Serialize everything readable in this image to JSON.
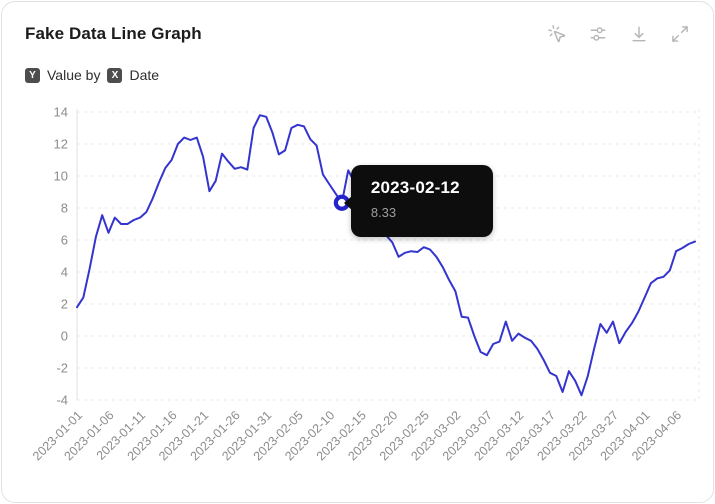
{
  "header": {
    "title": "Fake Data Line Graph",
    "toolbar_icons": [
      "mouse-pointer-click",
      "sliders",
      "download",
      "expand"
    ]
  },
  "subtitle": {
    "y_badge": "Y",
    "y_text": "Value by",
    "x_badge": "X",
    "x_text": "Date"
  },
  "tooltip": {
    "date": "2023-02-12",
    "value": "8.33"
  },
  "colors": {
    "line": "#3434cf",
    "marker_ring": "#2424cc",
    "tooltip_bg": "#0d0d0d",
    "axis_label": "#8c8c8c",
    "gridline": "#e8e8e8",
    "icon": "#b5b5b5",
    "badge_bg": "#4d4d4d"
  },
  "chart_data": {
    "type": "line",
    "title": "Fake Data Line Graph",
    "xlabel": "Date",
    "ylabel": "Value",
    "x_start": "2023-01-01",
    "x_interval_days": 1,
    "values": [
      1.8,
      2.4,
      4.2,
      6.2,
      7.55,
      6.45,
      7.4,
      7.0,
      7.0,
      7.25,
      7.4,
      7.75,
      8.6,
      9.6,
      10.5,
      11.0,
      12.0,
      12.4,
      12.25,
      12.4,
      11.2,
      9.05,
      9.7,
      11.4,
      10.9,
      10.45,
      10.55,
      10.4,
      13.0,
      13.8,
      13.7,
      12.7,
      11.35,
      11.6,
      13.0,
      13.2,
      13.1,
      12.3,
      11.9,
      10.1,
      9.5,
      8.9,
      8.33,
      10.35,
      9.6,
      9.0,
      8.3,
      7.6,
      6.9,
      6.3,
      5.85,
      4.95,
      5.2,
      5.3,
      5.25,
      5.55,
      5.4,
      4.95,
      4.3,
      3.5,
      2.8,
      1.2,
      1.15,
      0.0,
      -1.0,
      -1.2,
      -0.5,
      -0.35,
      0.9,
      -0.3,
      0.15,
      -0.1,
      -0.3,
      -0.8,
      -1.5,
      -2.3,
      -2.5,
      -3.5,
      -2.2,
      -2.8,
      -3.7,
      -2.5,
      -0.8,
      0.75,
      0.2,
      0.9,
      -0.45,
      0.25,
      0.8,
      1.5,
      2.4,
      3.3,
      3.6,
      3.7,
      4.1,
      5.3,
      5.5,
      5.75,
      5.9
    ],
    "ylim": [
      -4,
      14
    ],
    "yticks": [
      14,
      12,
      10,
      8,
      6,
      4,
      2,
      0,
      -2,
      -4
    ],
    "xtick_labels": [
      "2023-01-01",
      "2023-01-06",
      "2023-01-11",
      "2023-01-16",
      "2023-01-21",
      "2023-01-26",
      "2023-01-31",
      "2023-02-05",
      "2023-02-10",
      "2023-02-15",
      "2023-02-20",
      "2023-02-25",
      "2023-03-02",
      "2023-03-07",
      "2023-03-12",
      "2023-03-17",
      "2023-03-22",
      "2023-03-27",
      "2023-04-01",
      "2023-04-06"
    ],
    "xtick_every_n_points": 5,
    "grid": "dashed-horizontal",
    "legend": "none",
    "highlight": {
      "index": 42,
      "date": "2023-02-12",
      "value": 8.33
    }
  }
}
